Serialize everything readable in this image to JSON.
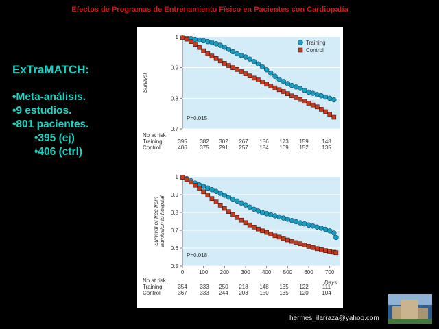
{
  "slide_title": "Efectos de Programas de Entrenamiento Físico en Pacientes con Cardiopatía",
  "left_text": {
    "heading": "ExTraMATCH:",
    "bullets": [
      "•Meta-análisis.",
      "•9 estudios.",
      "•801 pacientes."
    ],
    "sub_bullets": [
      "•395 (ej)",
      "•406 (ctrl)"
    ]
  },
  "footer_email": "hermes_ilarraza@yahoo.com",
  "colors": {
    "training": "#1a9cc2",
    "control": "#c23c22",
    "plot_bg": "#d4ecf8",
    "left_text": "#17d4c4",
    "title": "#d41818"
  },
  "chart_data": [
    {
      "type": "line",
      "ylabel": "Survival",
      "yticks": [
        "1",
        "0.9",
        "0.8",
        "0.7"
      ],
      "ylim": [
        0.7,
        1.0
      ],
      "xlim": [
        0,
        750
      ],
      "pvalue": "P=0.015",
      "legend": {
        "placement": "top-right",
        "entries": [
          "Training",
          "Control"
        ]
      },
      "series": [
        {
          "name": "Training",
          "marker": "circle",
          "x": [
            0,
            20,
            40,
            60,
            80,
            100,
            120,
            140,
            160,
            180,
            200,
            220,
            240,
            260,
            280,
            300,
            320,
            340,
            360,
            380,
            400,
            420,
            440,
            460,
            480,
            500,
            520,
            540,
            560,
            580,
            600,
            620,
            640,
            660,
            680,
            700,
            720
          ],
          "y": [
            0.998,
            0.996,
            0.994,
            0.992,
            0.99,
            0.988,
            0.985,
            0.982,
            0.978,
            0.973,
            0.967,
            0.96,
            0.952,
            0.945,
            0.94,
            0.935,
            0.928,
            0.92,
            0.912,
            0.903,
            0.893,
            0.882,
            0.872,
            0.862,
            0.855,
            0.848,
            0.842,
            0.837,
            0.832,
            0.826,
            0.82,
            0.816,
            0.812,
            0.808,
            0.804,
            0.8,
            0.795
          ]
        },
        {
          "name": "Control",
          "marker": "square",
          "x": [
            0,
            20,
            40,
            60,
            80,
            100,
            120,
            140,
            160,
            180,
            200,
            220,
            240,
            260,
            280,
            300,
            320,
            340,
            360,
            380,
            400,
            420,
            440,
            460,
            480,
            500,
            520,
            540,
            560,
            580,
            600,
            620,
            640,
            660,
            680,
            700,
            720
          ],
          "y": [
            0.998,
            0.993,
            0.985,
            0.976,
            0.966,
            0.955,
            0.946,
            0.938,
            0.93,
            0.922,
            0.914,
            0.907,
            0.9,
            0.894,
            0.887,
            0.88,
            0.873,
            0.866,
            0.86,
            0.853,
            0.846,
            0.84,
            0.834,
            0.828,
            0.822,
            0.815,
            0.808,
            0.802,
            0.796,
            0.79,
            0.784,
            0.778,
            0.772,
            0.764,
            0.756,
            0.748,
            0.738
          ]
        }
      ],
      "at_risk": {
        "title": "No at risk",
        "rows": [
          {
            "label": "Training",
            "values": [
              "395",
              "382",
              "302",
              "267",
              "186",
              "173",
              "159",
              "148"
            ]
          },
          {
            "label": "Control",
            "values": [
              "406",
              "375",
              "291",
              "257",
              "184",
              "169",
              "152",
              "135"
            ]
          }
        ]
      }
    },
    {
      "type": "line",
      "ylabel": "Survival or free from admission to hospital",
      "yticks": [
        "1",
        "0.9",
        "0.8",
        "0.7",
        "0.6",
        "0.5"
      ],
      "ylim": [
        0.5,
        1.0
      ],
      "xlim": [
        0,
        750
      ],
      "xticks": [
        "0",
        "100",
        "200",
        "300",
        "400",
        "500",
        "600",
        "700"
      ],
      "xlabel": "Days",
      "pvalue": "P=0.018",
      "series": [
        {
          "name": "Training",
          "marker": "circle",
          "x": [
            0,
            20,
            40,
            60,
            80,
            100,
            120,
            140,
            160,
            180,
            200,
            220,
            240,
            260,
            280,
            300,
            320,
            340,
            360,
            380,
            400,
            420,
            440,
            460,
            480,
            500,
            520,
            540,
            560,
            580,
            600,
            620,
            640,
            660,
            680,
            700,
            720,
            730
          ],
          "y": [
            0.998,
            0.99,
            0.978,
            0.965,
            0.955,
            0.946,
            0.937,
            0.928,
            0.918,
            0.908,
            0.897,
            0.886,
            0.875,
            0.864,
            0.853,
            0.842,
            0.83,
            0.818,
            0.808,
            0.8,
            0.793,
            0.787,
            0.781,
            0.775,
            0.769,
            0.762,
            0.755,
            0.748,
            0.742,
            0.736,
            0.73,
            0.724,
            0.718,
            0.712,
            0.705,
            0.697,
            0.685,
            0.66
          ]
        },
        {
          "name": "Control",
          "marker": "square",
          "x": [
            0,
            20,
            40,
            60,
            80,
            100,
            120,
            140,
            160,
            180,
            200,
            220,
            240,
            260,
            280,
            300,
            320,
            340,
            360,
            380,
            400,
            420,
            440,
            460,
            480,
            500,
            520,
            540,
            560,
            580,
            600,
            620,
            640,
            660,
            680,
            700,
            720,
            730
          ],
          "y": [
            0.998,
            0.985,
            0.97,
            0.953,
            0.935,
            0.916,
            0.897,
            0.878,
            0.859,
            0.841,
            0.823,
            0.805,
            0.788,
            0.772,
            0.757,
            0.743,
            0.73,
            0.718,
            0.707,
            0.697,
            0.688,
            0.679,
            0.67,
            0.662,
            0.654,
            0.646,
            0.638,
            0.631,
            0.624,
            0.617,
            0.61,
            0.603,
            0.597,
            0.591,
            0.586,
            0.581,
            0.577,
            0.574
          ]
        }
      ],
      "at_risk": {
        "title": "No at risk",
        "rows": [
          {
            "label": "Training",
            "values": [
              "354",
              "333",
              "250",
              "218",
              "148",
              "135",
              "122",
              "111"
            ]
          },
          {
            "label": "Control",
            "values": [
              "367",
              "333",
              "244",
              "203",
              "150",
              "135",
              "120",
              "104"
            ]
          }
        ]
      }
    }
  ]
}
